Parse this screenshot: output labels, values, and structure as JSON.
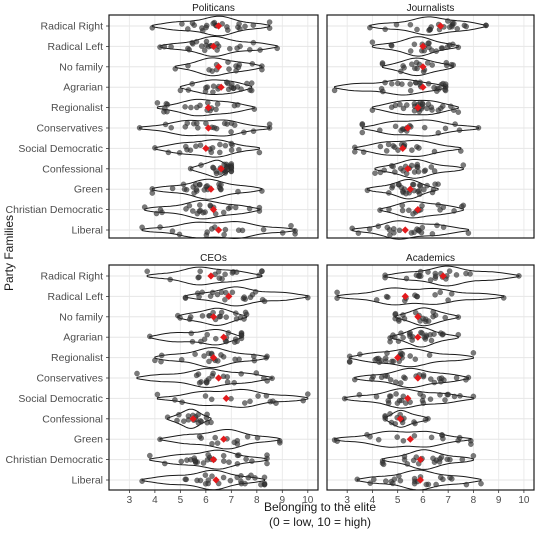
{
  "chart_data": {
    "type": "violin-jitter",
    "ylabel": "Party Families",
    "xlabel_line1": "Belonging to the elite",
    "xlabel_line2": "(0 = low, 10 = high)",
    "x_ticks": [
      3,
      4,
      5,
      6,
      7,
      8,
      9,
      10
    ],
    "xlim": [
      2.2,
      10.4
    ],
    "categories": [
      "Radical Right",
      "Radical Left",
      "No family",
      "Agrarian",
      "Regionalist",
      "Conservatives",
      "Social Democratic",
      "Confessional",
      "Green",
      "Christian Democratic",
      "Liberal"
    ],
    "mean_marker_color": "#e31a1c",
    "point_color": "#333333",
    "panels": [
      {
        "title": "Politicans",
        "means": [
          6.5,
          6.3,
          6.5,
          6.6,
          6.1,
          6.1,
          6.0,
          6.6,
          6.2,
          6.3,
          6.5
        ],
        "ranges": [
          [
            3.9,
            8.5
          ],
          [
            4.2,
            8.8
          ],
          [
            4.8,
            8.2
          ],
          [
            5.0,
            7.8
          ],
          [
            4.1,
            7.9
          ],
          [
            3.4,
            8.5
          ],
          [
            4.0,
            8.1
          ],
          [
            5.4,
            7.0
          ],
          [
            3.9,
            8.2
          ],
          [
            3.6,
            8.1
          ],
          [
            3.5,
            9.5
          ]
        ]
      },
      {
        "title": "Journalists",
        "means": [
          6.7,
          6.0,
          6.0,
          6.0,
          5.8,
          5.4,
          5.2,
          5.4,
          5.5,
          5.8,
          5.3
        ],
        "ranges": [
          [
            3.9,
            8.5
          ],
          [
            4.0,
            7.4
          ],
          [
            4.4,
            7.2
          ],
          [
            2.5,
            6.9
          ],
          [
            4.0,
            7.4
          ],
          [
            3.6,
            8.2
          ],
          [
            3.3,
            7.5
          ],
          [
            4.1,
            7.6
          ],
          [
            3.8,
            6.6
          ],
          [
            4.3,
            7.6
          ],
          [
            3.2,
            7.8
          ]
        ]
      },
      {
        "title": "CEOs",
        "means": [
          6.2,
          6.9,
          6.3,
          6.7,
          6.3,
          6.5,
          6.8,
          5.5,
          6.7,
          6.3,
          6.4
        ],
        "ranges": [
          [
            3.7,
            8.2
          ],
          [
            5.2,
            10.0
          ],
          [
            4.9,
            7.6
          ],
          [
            3.8,
            7.4
          ],
          [
            4.0,
            8.4
          ],
          [
            3.3,
            8.6
          ],
          [
            4.1,
            10.0
          ],
          [
            4.5,
            6.2
          ],
          [
            4.2,
            8.9
          ],
          [
            3.8,
            8.4
          ],
          [
            3.5,
            8.3
          ]
        ]
      },
      {
        "title": "Academics",
        "means": [
          6.8,
          5.3,
          5.8,
          5.8,
          5.0,
          5.8,
          5.4,
          5.1,
          5.5,
          5.9,
          5.9
        ],
        "ranges": [
          [
            4.5,
            9.8
          ],
          [
            2.6,
            9.2
          ],
          [
            4.9,
            7.4
          ],
          [
            4.7,
            7.4
          ],
          [
            3.1,
            8.0
          ],
          [
            3.3,
            7.8
          ],
          [
            2.9,
            8.0
          ],
          [
            4.5,
            6.2
          ],
          [
            2.5,
            7.9
          ],
          [
            4.4,
            8.0
          ],
          [
            3.4,
            8.3
          ]
        ]
      }
    ]
  }
}
